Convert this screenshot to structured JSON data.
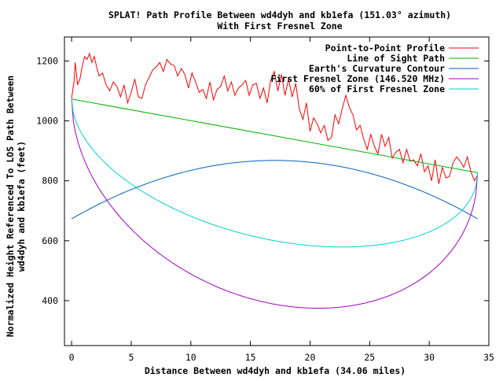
{
  "chart_data": {
    "type": "line",
    "title_line1": "SPLAT! Path Profile Between wd4dyh and kb1efa (151.03° azimuth)",
    "title_line2": "With First Fresnel Zone",
    "xlabel": "Distance Between wd4dyh and kb1efa (34.06 miles)",
    "ylabel_line1": "Normalized Height Referenced To LOS Path Between",
    "ylabel_line2": "wd4dyh and kb1efa (feet)",
    "xlim": [
      -0.6,
      35
    ],
    "ylim": [
      250,
      1280
    ],
    "x_ticks": [
      0,
      5,
      10,
      15,
      20,
      25,
      30,
      35
    ],
    "y_ticks": [
      400,
      600,
      800,
      1000,
      1200
    ],
    "grid": false,
    "legend_position": "top-right",
    "series": [
      {
        "name": "Point-to-Point Profile",
        "color": "#ff0000",
        "x": [
          0,
          0.2,
          0.3,
          0.5,
          0.7,
          0.9,
          1.1,
          1.3,
          1.5,
          1.7,
          1.9,
          2.1,
          2.3,
          2.6,
          2.9,
          3.2,
          3.5,
          3.8,
          4.1,
          4.4,
          4.7,
          5.0,
          5.3,
          5.6,
          5.9,
          6.2,
          6.5,
          6.8,
          7.1,
          7.4,
          7.7,
          8.0,
          8.3,
          8.6,
          8.9,
          9.2,
          9.5,
          9.8,
          10.1,
          10.4,
          10.7,
          11.0,
          11.3,
          11.6,
          11.9,
          12.2,
          12.5,
          12.8,
          13.1,
          13.4,
          13.7,
          14.0,
          14.3,
          14.6,
          14.9,
          15.2,
          15.5,
          15.8,
          16.1,
          16.4,
          16.7,
          17.0,
          17.3,
          17.6,
          17.9,
          18.2,
          18.5,
          18.8,
          19.1,
          19.4,
          19.7,
          20.0,
          20.3,
          20.6,
          20.9,
          21.2,
          21.5,
          21.8,
          22.1,
          22.4,
          22.7,
          23.0,
          23.3,
          23.6,
          23.9,
          24.2,
          24.5,
          24.8,
          25.1,
          25.4,
          25.7,
          26.0,
          26.3,
          26.6,
          26.9,
          27.2,
          27.5,
          27.8,
          28.1,
          28.4,
          28.7,
          29.0,
          29.3,
          29.6,
          29.9,
          30.2,
          30.5,
          30.8,
          31.1,
          31.4,
          31.7,
          32.0,
          32.3,
          32.6,
          32.9,
          33.2,
          33.5,
          33.8,
          34.06
        ],
        "y": [
          1075,
          1130,
          1195,
          1120,
          1140,
          1185,
          1215,
          1205,
          1225,
          1195,
          1215,
          1180,
          1150,
          1160,
          1120,
          1100,
          1130,
          1115,
          1080,
          1120,
          1060,
          1095,
          1140,
          1080,
          1075,
          1120,
          1145,
          1170,
          1180,
          1195,
          1165,
          1205,
          1190,
          1185,
          1150,
          1175,
          1155,
          1110,
          1160,
          1130,
          1095,
          1105,
          1075,
          1130,
          1070,
          1105,
          1115,
          1150,
          1100,
          1130,
          1085,
          1110,
          1120,
          1135,
          1085,
          1120,
          1125,
          1075,
          1110,
          1060,
          1135,
          1165,
          1100,
          1155,
          1085,
          1140,
          1080,
          1125,
          1040,
          1005,
          1060,
          965,
          1010,
          990,
          960,
          985,
          935,
          945,
          1020,
          990,
          1040,
          1085,
          1045,
          1020,
          970,
          985,
          940,
          905,
          955,
          915,
          890,
          955,
          915,
          945,
          875,
          895,
          905,
          860,
          905,
          865,
          870,
          850,
          890,
          830,
          850,
          800,
          870,
          790,
          845,
          810,
          815,
          860,
          880,
          865,
          845,
          880,
          830,
          800,
          820
        ]
      },
      {
        "name": "Line of Sight Path",
        "color": "#00b000",
        "x": [
          0,
          34.06
        ],
        "y": [
          1073,
          827
        ]
      },
      {
        "name": "Earth's Curvature Contour",
        "color": "#0060c0",
        "curve": "parabola",
        "x_range": [
          0,
          34.06
        ],
        "y_ends": [
          673,
          673
        ],
        "y_peak": 868
      },
      {
        "name": "First Fresnel Zone (146.520 MHz)",
        "color": "#a000c0",
        "curve": "ellipse",
        "x_range": [
          0,
          34.06
        ],
        "y_ends": [
          1073,
          827
        ],
        "y_min": 388
      },
      {
        "name": "60% of First Fresnel Zone",
        "color": "#00d0d0",
        "curve": "ellipse",
        "x_range": [
          0,
          34.06
        ],
        "y_ends": [
          1073,
          827
        ],
        "y_min": 600
      }
    ]
  }
}
